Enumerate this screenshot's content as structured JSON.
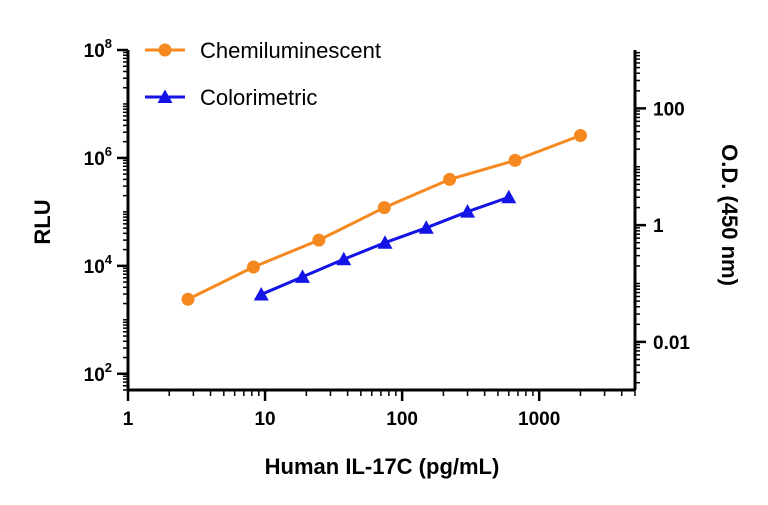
{
  "chart_data": {
    "type": "line",
    "xlabel": "Human IL-17C (pg/mL)",
    "ylabel": "RLU",
    "y2label": "O.D. (450 nm)",
    "x_scale": "log",
    "y_scale": "log",
    "y2_scale": "log",
    "xlim": [
      1,
      5000
    ],
    "ylim": [
      50,
      100000000
    ],
    "y2lim": [
      0.0015,
      1000
    ],
    "x_ticks": [
      {
        "value": 1,
        "label": "1"
      },
      {
        "value": 10,
        "label": "10"
      },
      {
        "value": 100,
        "label": "100"
      },
      {
        "value": 1000,
        "label": "1000"
      }
    ],
    "y_ticks": [
      {
        "value": 100,
        "base": "10",
        "exp": "2"
      },
      {
        "value": 10000,
        "base": "10",
        "exp": "4"
      },
      {
        "value": 1000000,
        "base": "10",
        "exp": "6"
      },
      {
        "value": 100000000,
        "base": "10",
        "exp": "8"
      }
    ],
    "y2_ticks": [
      {
        "value": 0.01,
        "label": "0.01"
      },
      {
        "value": 1,
        "label": "1"
      },
      {
        "value": 100,
        "label": "100"
      }
    ],
    "legend_position": "top-left",
    "grid": false,
    "series": [
      {
        "name": "Chemiluminescent",
        "axis": "left",
        "marker": "circle",
        "color": "#F5891F",
        "x": [
          2.74,
          8.23,
          24.7,
          74.1,
          222,
          667,
          2000
        ],
        "y": [
          2400,
          9500,
          30000,
          120000,
          400000,
          900000,
          2600000
        ]
      },
      {
        "name": "Colorimetric",
        "axis": "right",
        "marker": "triangle",
        "color": "#1414E6",
        "x": [
          9.38,
          18.75,
          37.5,
          75,
          150,
          300,
          600
        ],
        "y": [
          0.065,
          0.13,
          0.26,
          0.5,
          0.9,
          1.7,
          3.0
        ]
      }
    ]
  }
}
